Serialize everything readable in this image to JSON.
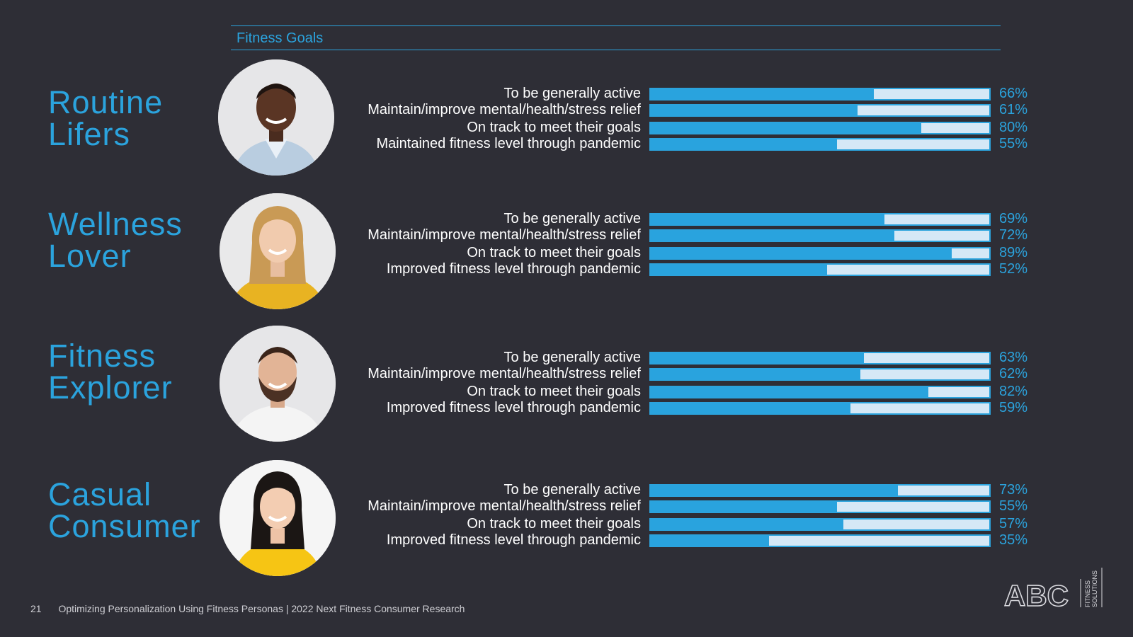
{
  "header": {
    "title": "Fitness Goals"
  },
  "chart_data": {
    "type": "bar",
    "title": "Fitness Goals",
    "value_unit": "%",
    "xlim": [
      0,
      100
    ],
    "personas": [
      {
        "name_line1": "Routine",
        "name_line2": "Lifers",
        "categories": [
          "To be generally active",
          "Maintain/improve mental/health/stress relief",
          "On track to meet their goals",
          "Maintained fitness level through pandemic"
        ],
        "values": [
          66,
          61,
          80,
          55
        ],
        "value_labels": [
          "66%",
          "61%",
          "80%",
          "55%"
        ]
      },
      {
        "name_line1": "Wellness",
        "name_line2": "Lover",
        "categories": [
          "To be generally active",
          "Maintain/improve mental/health/stress relief",
          "On track to meet their goals",
          "Improved fitness level through pandemic"
        ],
        "values": [
          69,
          72,
          89,
          52
        ],
        "value_labels": [
          "69%",
          "72%",
          "89%",
          "52%"
        ]
      },
      {
        "name_line1": "Fitness",
        "name_line2": "Explorer",
        "categories": [
          "To be generally active",
          "Maintain/improve mental/health/stress relief",
          "On track to meet their goals",
          "Improved fitness level through pandemic"
        ],
        "values": [
          63,
          62,
          82,
          59
        ],
        "value_labels": [
          "63%",
          "62%",
          "82%",
          "59%"
        ]
      },
      {
        "name_line1": "Casual",
        "name_line2": "Consumer",
        "categories": [
          "To be generally active",
          "Maintain/improve mental/health/stress relief",
          "On track to meet their goals",
          "Improved fitness level through pandemic"
        ],
        "values": [
          73,
          55,
          57,
          35
        ],
        "value_labels": [
          "73%",
          "55%",
          "57%",
          "35%"
        ]
      }
    ]
  },
  "footer": {
    "page_number": "21",
    "text": "Optimizing Personalization Using Fitness Personas |  2022 Next Fitness Consumer Research"
  },
  "logo": {
    "brand": "ABC",
    "line1": "FITNESS",
    "line2": "SOLUTIONS"
  },
  "colors": {
    "accent": "#2ba3dd",
    "background": "#2e2e36",
    "track": "#d5e8f6"
  }
}
